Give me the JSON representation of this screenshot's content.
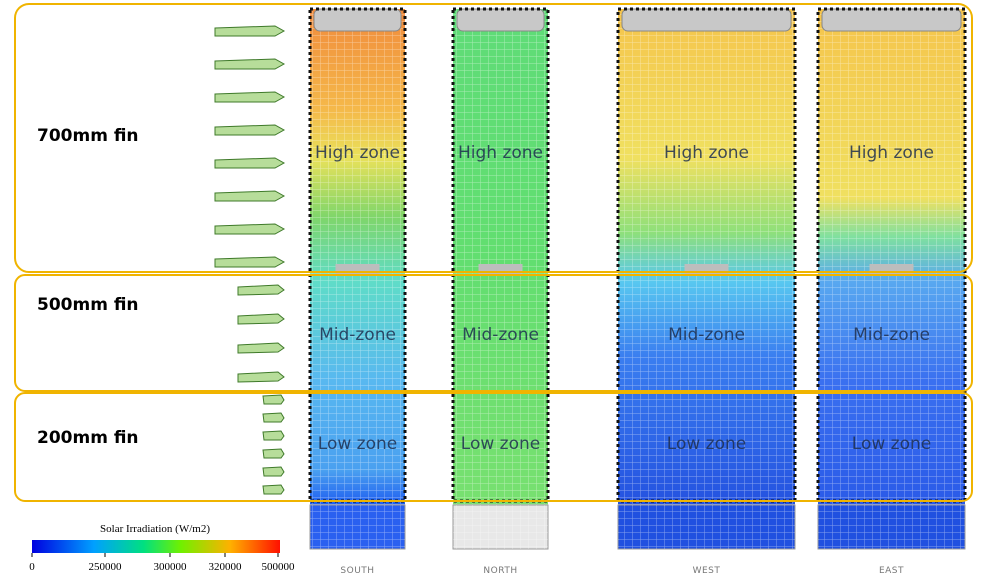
{
  "fins": [
    "700mm fin",
    "500mm fin",
    "200mm fin"
  ],
  "facades": [
    {
      "label": "SOUTH",
      "zones": [
        "High zone",
        "Mid-zone",
        "Low zone"
      ]
    },
    {
      "label": "NORTH",
      "zones": [
        "High zone",
        "Mid-zone",
        "Low zone"
      ]
    },
    {
      "label": "WEST",
      "zones": [
        "High zone",
        "Mid-zone",
        "Low zone"
      ]
    },
    {
      "label": "EAST",
      "zones": [
        "High zone",
        "Mid-zone",
        "Low zone"
      ]
    }
  ],
  "legend": {
    "title": "Solar Irradiation (W/m2)",
    "ticks": [
      0,
      250000,
      300000,
      320000,
      500000
    ]
  }
}
